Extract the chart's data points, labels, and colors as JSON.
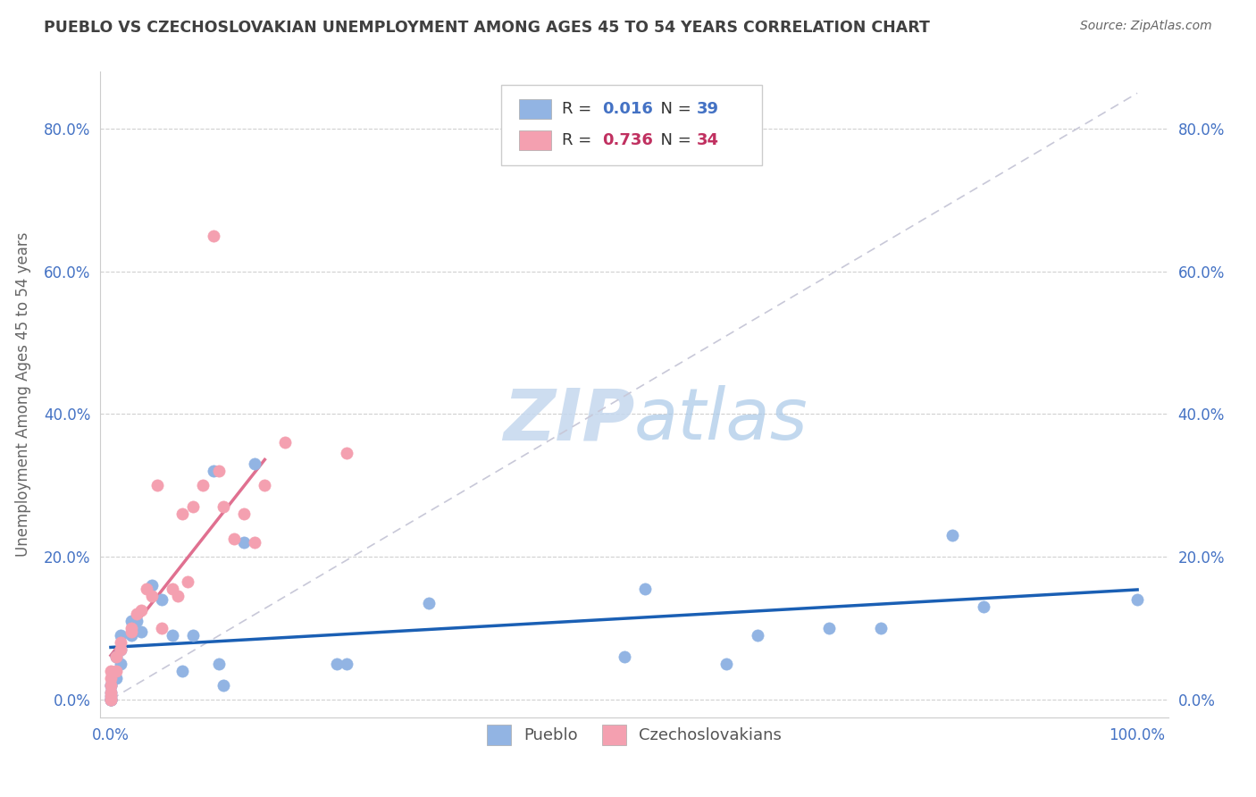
{
  "title": "PUEBLO VS CZECHOSLOVAKIAN UNEMPLOYMENT AMONG AGES 45 TO 54 YEARS CORRELATION CHART",
  "source": "Source: ZipAtlas.com",
  "ylabel": "Unemployment Among Ages 45 to 54 years",
  "pueblo_R": 0.016,
  "pueblo_N": 39,
  "czech_R": 0.736,
  "czech_N": 34,
  "pueblo_color": "#92b4e3",
  "czech_color": "#f4a0b0",
  "pueblo_line_color": "#1a5fb4",
  "czech_line_color": "#e07090",
  "diagonal_color": "#c8c8d8",
  "title_color": "#404040",
  "source_color": "#666666",
  "label_color": "#4472c4",
  "background_color": "#ffffff",
  "grid_color": "#d0d0d0",
  "watermark_color": "#d8e8f5",
  "pueblo_x": [
    0.0,
    0.0,
    0.0,
    0.0,
    0.0,
    0.0,
    0.0,
    0.0,
    0.005,
    0.005,
    0.01,
    0.01,
    0.01,
    0.02,
    0.02,
    0.025,
    0.03,
    0.04,
    0.05,
    0.06,
    0.07,
    0.08,
    0.1,
    0.105,
    0.11,
    0.13,
    0.14,
    0.22,
    0.23,
    0.31,
    0.5,
    0.52,
    0.6,
    0.63,
    0.7,
    0.75,
    0.82,
    0.85,
    1.0
  ],
  "pueblo_y": [
    0.0,
    0.0,
    0.0,
    0.0,
    0.005,
    0.01,
    0.02,
    0.02,
    0.03,
    0.06,
    0.05,
    0.07,
    0.09,
    0.09,
    0.11,
    0.11,
    0.095,
    0.16,
    0.14,
    0.09,
    0.04,
    0.09,
    0.32,
    0.05,
    0.02,
    0.22,
    0.33,
    0.05,
    0.05,
    0.135,
    0.06,
    0.155,
    0.05,
    0.09,
    0.1,
    0.1,
    0.23,
    0.13,
    0.14
  ],
  "czech_x": [
    0.0,
    0.0,
    0.0,
    0.0,
    0.0,
    0.0,
    0.0,
    0.005,
    0.005,
    0.01,
    0.01,
    0.02,
    0.02,
    0.025,
    0.03,
    0.035,
    0.04,
    0.045,
    0.05,
    0.06,
    0.065,
    0.07,
    0.075,
    0.08,
    0.09,
    0.1,
    0.105,
    0.11,
    0.12,
    0.13,
    0.14,
    0.15,
    0.17,
    0.23
  ],
  "czech_y": [
    0.0,
    0.0,
    0.005,
    0.01,
    0.02,
    0.03,
    0.04,
    0.04,
    0.06,
    0.07,
    0.08,
    0.095,
    0.1,
    0.12,
    0.125,
    0.155,
    0.145,
    0.3,
    0.1,
    0.155,
    0.145,
    0.26,
    0.165,
    0.27,
    0.3,
    0.65,
    0.32,
    0.27,
    0.225,
    0.26,
    0.22,
    0.3,
    0.36,
    0.345
  ],
  "ytick_values": [
    0.0,
    0.2,
    0.4,
    0.6,
    0.8
  ],
  "ytick_labels": [
    "0.0%",
    "20.0%",
    "40.0%",
    "60.0%",
    "80.0%"
  ],
  "xtick_values": [
    0.0,
    0.2,
    0.4,
    0.6,
    0.8,
    1.0
  ],
  "xtick_labels": [
    "0.0%",
    "",
    "",
    "",
    "",
    "100.0%"
  ],
  "xlim": [
    -0.01,
    1.03
  ],
  "ylim": [
    -0.025,
    0.88
  ]
}
